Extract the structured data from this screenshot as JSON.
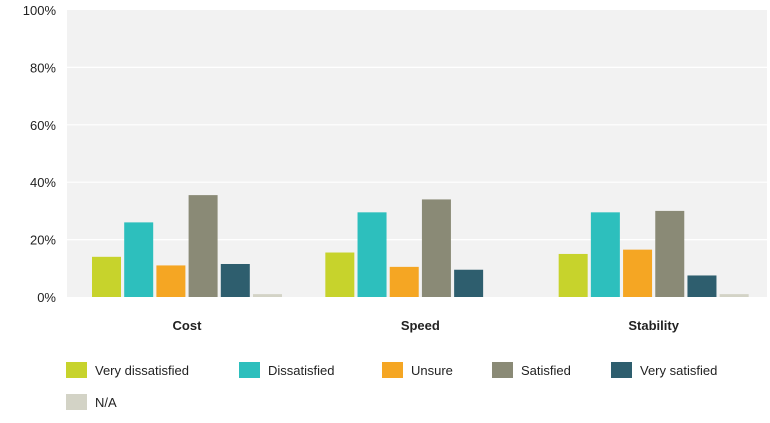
{
  "chart_data": {
    "type": "bar",
    "title": "",
    "xlabel": "",
    "ylabel": "",
    "ylim": [
      0,
      100
    ],
    "y_ticks": [
      "0%",
      "20%",
      "40%",
      "60%",
      "80%",
      "100%"
    ],
    "y_tick_values": [
      0,
      20,
      40,
      60,
      80,
      100
    ],
    "grid": true,
    "legend_position": "bottom-left",
    "categories": [
      "Cost",
      "Speed",
      "Stability"
    ],
    "series": [
      {
        "name": "Very dissatisfied",
        "color": "#c7d32c",
        "values": [
          14,
          15.5,
          15
        ]
      },
      {
        "name": "Dissatisfied",
        "color": "#2dbfbd",
        "values": [
          26,
          29.5,
          29.5
        ]
      },
      {
        "name": "Unsure",
        "color": "#f5a623",
        "values": [
          11,
          10.5,
          16.5
        ]
      },
      {
        "name": "Satisfied",
        "color": "#8a8a76",
        "values": [
          35.5,
          34,
          30
        ]
      },
      {
        "name": "Very satisfied",
        "color": "#2e5e6e",
        "values": [
          11.5,
          9.5,
          7.5
        ]
      },
      {
        "name": "N/A",
        "color": "#d3d3c6",
        "values": [
          1,
          0,
          1
        ]
      }
    ]
  },
  "colors": {
    "plot_background": "#f2f2f2",
    "gridline": "#ffffff",
    "text": "#222222"
  }
}
